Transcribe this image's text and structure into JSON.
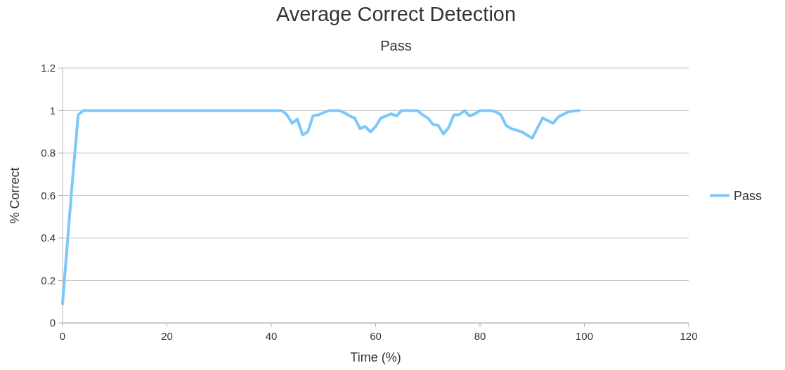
{
  "chart_data": {
    "type": "line",
    "title": "Average Correct Detection",
    "subtitle": "Pass",
    "xlabel": "Time (%)",
    "ylabel": "% Correct",
    "x": [
      0,
      1,
      2,
      3,
      4,
      42,
      43,
      44,
      45,
      46,
      47,
      48,
      49,
      51,
      53,
      54,
      55,
      56,
      57,
      58,
      59,
      60,
      61,
      63,
      64,
      65,
      68,
      69,
      70,
      71,
      72,
      73,
      74,
      75,
      76,
      77,
      78,
      79,
      80,
      82,
      83,
      84,
      85,
      86,
      88,
      90,
      92,
      94,
      95,
      97,
      99
    ],
    "series": [
      {
        "name": "Pass",
        "color": "#7cc8fb",
        "values": [
          0.09,
          0.4,
          0.7,
          0.98,
          1,
          1,
          0.98,
          0.94,
          0.96,
          0.885,
          0.9,
          0.975,
          0.98,
          1,
          1,
          0.99,
          0.975,
          0.965,
          0.915,
          0.925,
          0.9,
          0.925,
          0.965,
          0.985,
          0.975,
          1,
          1,
          0.98,
          0.965,
          0.935,
          0.93,
          0.89,
          0.92,
          0.98,
          0.98,
          1,
          0.975,
          0.985,
          1,
          1,
          0.995,
          0.98,
          0.93,
          0.915,
          0.9,
          0.87,
          0.965,
          0.94,
          0.97,
          0.995,
          1
        ]
      }
    ],
    "xlim": [
      0,
      120
    ],
    "xticks": [
      0,
      20,
      40,
      60,
      80,
      100,
      120
    ],
    "ylim": [
      0,
      1.2
    ],
    "yticks": [
      0,
      0.2,
      0.4,
      0.6,
      0.8,
      1,
      1.2
    ],
    "grid": "y",
    "legend": "right",
    "marker": "none",
    "line_style": "solid"
  }
}
